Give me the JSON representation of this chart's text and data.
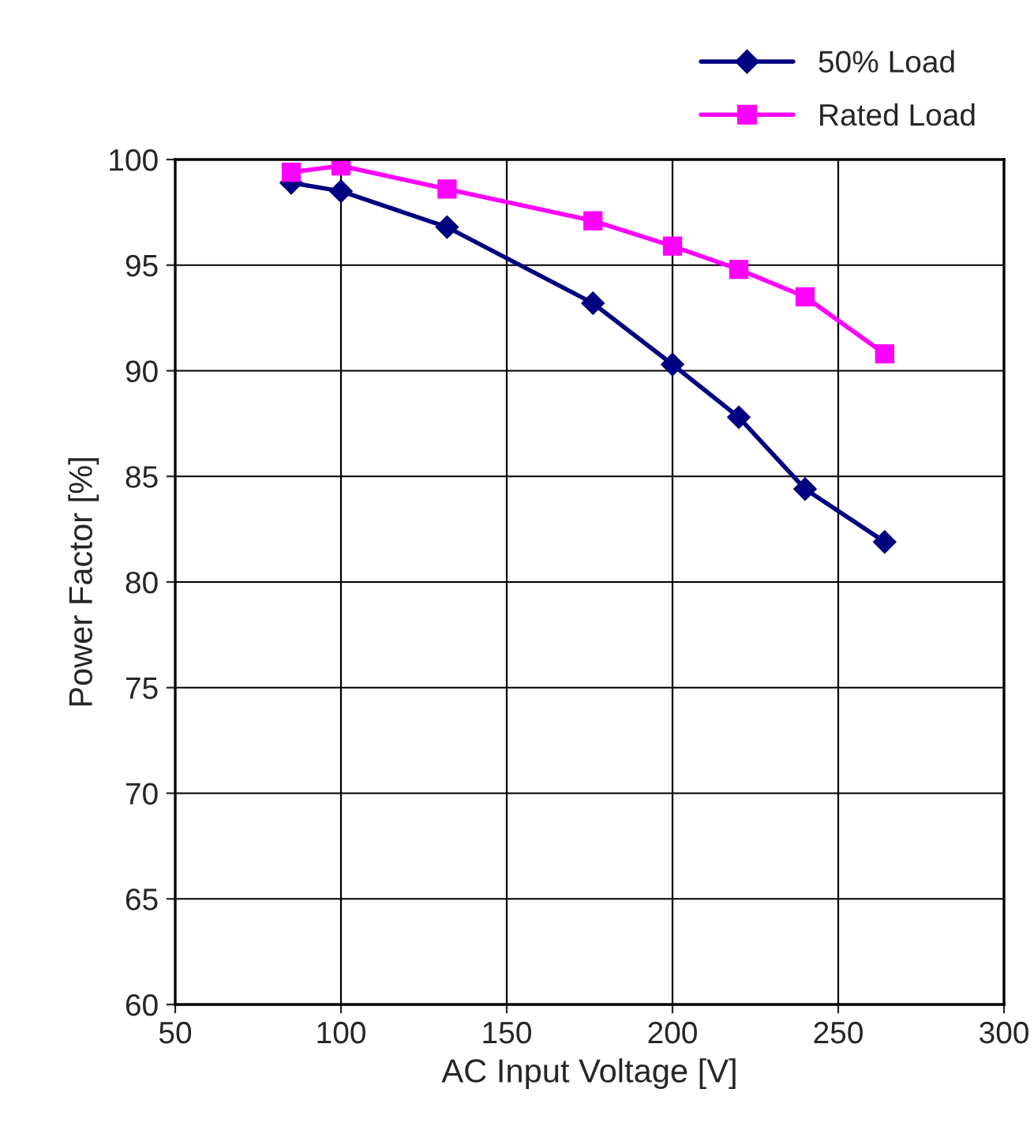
{
  "chart_data": {
    "type": "line",
    "xlabel": "AC Input Voltage [V]",
    "ylabel": "Power Factor [%]",
    "x": [
      85,
      100,
      132,
      176,
      200,
      220,
      240,
      264
    ],
    "series": [
      {
        "name": "50% Load",
        "color": "#000080",
        "marker": "diamond",
        "values": [
          98.9,
          98.5,
          96.8,
          93.2,
          90.3,
          87.8,
          84.4,
          81.9
        ]
      },
      {
        "name": "Rated Load",
        "color": "#ff00ff",
        "marker": "square",
        "values": [
          99.4,
          99.7,
          98.6,
          97.1,
          95.9,
          94.8,
          93.5,
          90.8
        ]
      }
    ],
    "xlim": [
      50,
      300
    ],
    "xticks": [
      50,
      100,
      150,
      200,
      250,
      300
    ],
    "ylim": [
      60,
      100
    ],
    "yticks": [
      60,
      65,
      70,
      75,
      80,
      85,
      90,
      95,
      100
    ],
    "grid": true,
    "legend": "top right",
    "line_style": "solid"
  }
}
